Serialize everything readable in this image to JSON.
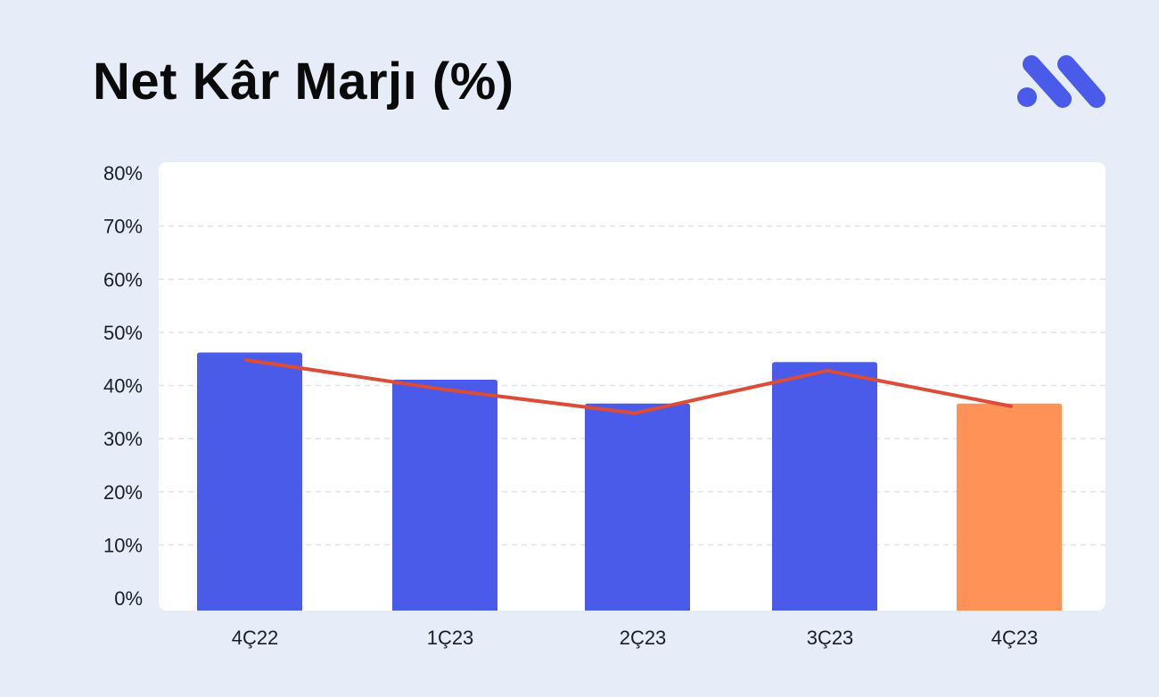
{
  "title": "Net Kâr Marjı (%)",
  "logo": {
    "icon": "brand-logo-icon",
    "color": "#4a5be9"
  },
  "chart_data": {
    "type": "bar",
    "title": "Net Kâr Marjı (%)",
    "categories": [
      "4Ç22",
      "1Ç23",
      "2Ç23",
      "3Ç23",
      "4Ç23"
    ],
    "series": [
      {
        "type": "bar",
        "values": [
          46.2,
          41.1,
          36.6,
          44.4,
          36.6
        ],
        "colors": [
          "#4a5be9",
          "#4a5be9",
          "#4a5be9",
          "#4a5be9",
          "#ff9257"
        ]
      },
      {
        "type": "line",
        "values": [
          44.8,
          39.3,
          34.8,
          42.8,
          36.1
        ],
        "color": "#dc4c37"
      }
    ],
    "ylim": [
      0,
      80
    ],
    "yticks": [
      0,
      10,
      20,
      30,
      40,
      50,
      60,
      70,
      80
    ],
    "ytick_labels": [
      "0%",
      "10%",
      "20%",
      "30%",
      "40%",
      "50%",
      "60%",
      "70%",
      "80%"
    ],
    "grid": true,
    "legend": "none",
    "background": "#ffffff",
    "gridline_color": "#dfe3ee"
  }
}
